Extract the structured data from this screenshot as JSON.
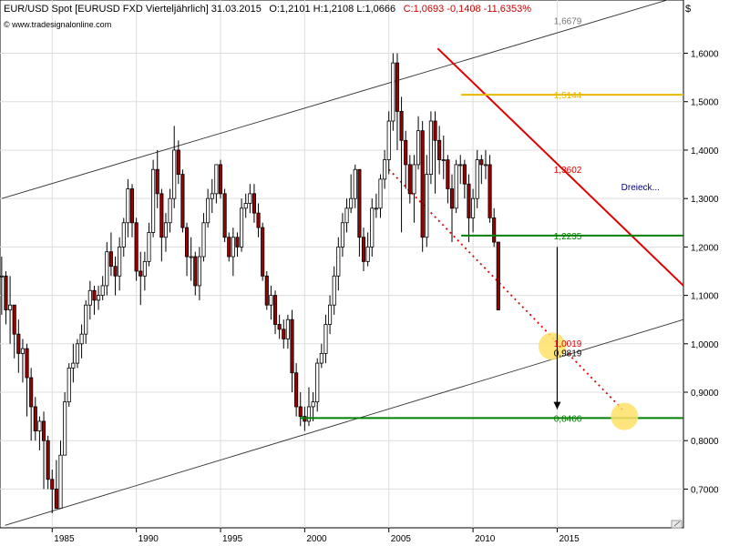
{
  "header": {
    "title": "EUR/USD Spot [EURUSD FXD  Vierteljährlich] 31.03.2015",
    "ohlc": "O:1,2101 H:1,2108 L:1,0666",
    "close_change": "C:1,0693 -0,1408 -11,6353%",
    "source": "© www.tradesignalonline.com",
    "currency": "$"
  },
  "colors": {
    "up": "#ffffff",
    "down": "#990000",
    "wick": "#000000",
    "channel": "#333333",
    "resistance": "#e00000",
    "projection": "#e00000",
    "support": "#008000",
    "level_1514": "#ffcc00",
    "highlight": "#ffe066",
    "arrow": "#000000",
    "annotation": "#000080"
  },
  "chart_data": {
    "type": "candlestick",
    "frequency": "quarterly",
    "ylim": [
      0.62,
      1.71
    ],
    "yticks": [
      0.7,
      0.8,
      0.9,
      1.0,
      1.1,
      1.2,
      1.3,
      1.4,
      1.5,
      1.6
    ],
    "ytick_labels": [
      "0,7000",
      "0,8000",
      "0,9000",
      "1,0000",
      "1,1000",
      "1,2000",
      "1,3000",
      "1,4000",
      "1,5000",
      "1,6000"
    ],
    "xlim": [
      1981.9,
      2022.5
    ],
    "xticks": [
      1985,
      1990,
      1995,
      2000,
      2005,
      2010,
      2015
    ],
    "xtick_labels": [
      "1985",
      "1990",
      "1995",
      "2000",
      "2005",
      "2010",
      "2015"
    ],
    "grid": true,
    "series_start": 1982.0,
    "closes": [
      1.14,
      1.07,
      1.08,
      1.02,
      0.98,
      0.99,
      0.93,
      0.87,
      0.82,
      0.84,
      0.8,
      0.72,
      0.7,
      0.66,
      0.77,
      0.88,
      0.95,
      0.96,
      1.0,
      1.02,
      1.08,
      1.11,
      1.09,
      1.1,
      1.12,
      1.19,
      1.16,
      1.14,
      1.2,
      1.25,
      1.32,
      1.25,
      1.15,
      1.14,
      1.17,
      1.23,
      1.36,
      1.31,
      1.22,
      1.25,
      1.3,
      1.4,
      1.35,
      1.24,
      1.18,
      1.18,
      1.12,
      1.18,
      1.25,
      1.3,
      1.31,
      1.37,
      1.31,
      1.22,
      1.18,
      1.22,
      1.2,
      1.28,
      1.29,
      1.31,
      1.27,
      1.24,
      1.14,
      1.08,
      1.1,
      1.04,
      1.03,
      1.01,
      1.05,
      0.94,
      0.87,
      0.85,
      0.84,
      0.87,
      0.88,
      0.96,
      0.98,
      1.04,
      1.08,
      1.14,
      1.2,
      1.25,
      1.28,
      1.3,
      1.36,
      1.22,
      1.17,
      1.2,
      1.28,
      1.28,
      1.34,
      1.38,
      1.46,
      1.58,
      1.48,
      1.42,
      1.37,
      1.31,
      1.37,
      1.44,
      1.22,
      1.35,
      1.46,
      1.42,
      1.38,
      1.38,
      1.32,
      1.28,
      1.37,
      1.37,
      1.33,
      1.26,
      1.3,
      1.38,
      1.37,
      1.37,
      1.26,
      1.21,
      1.07
    ],
    "highs": [
      1.18,
      1.15,
      1.14,
      1.08,
      1.05,
      1.01,
      1.0,
      0.95,
      0.89,
      0.85,
      0.86,
      0.81,
      0.74,
      0.76,
      0.8,
      0.9,
      0.96,
      1.0,
      1.01,
      1.04,
      1.09,
      1.13,
      1.12,
      1.12,
      1.14,
      1.21,
      1.23,
      1.18,
      1.22,
      1.26,
      1.34,
      1.33,
      1.26,
      1.19,
      1.19,
      1.25,
      1.38,
      1.4,
      1.32,
      1.27,
      1.32,
      1.45,
      1.42,
      1.36,
      1.25,
      1.22,
      1.19,
      1.2,
      1.27,
      1.32,
      1.34,
      1.37,
      1.38,
      1.32,
      1.23,
      1.24,
      1.23,
      1.3,
      1.31,
      1.33,
      1.33,
      1.29,
      1.25,
      1.15,
      1.12,
      1.11,
      1.06,
      1.05,
      1.06,
      1.07,
      0.96,
      0.9,
      0.87,
      0.91,
      0.9,
      0.97,
      1.0,
      1.06,
      1.1,
      1.16,
      1.22,
      1.27,
      1.3,
      1.35,
      1.37,
      1.36,
      1.24,
      1.23,
      1.3,
      1.31,
      1.35,
      1.4,
      1.48,
      1.6,
      1.6,
      1.51,
      1.44,
      1.39,
      1.39,
      1.47,
      1.46,
      1.39,
      1.48,
      1.48,
      1.45,
      1.43,
      1.39,
      1.35,
      1.38,
      1.39,
      1.38,
      1.35,
      1.32,
      1.4,
      1.39,
      1.4,
      1.39,
      1.28,
      1.21
    ],
    "lows": [
      1.06,
      1.04,
      1.0,
      0.97,
      0.94,
      0.92,
      0.85,
      0.8,
      0.8,
      0.78,
      0.7,
      0.7,
      0.65,
      0.66,
      0.69,
      0.77,
      0.87,
      0.92,
      0.95,
      0.97,
      1.0,
      1.05,
      1.06,
      1.07,
      1.09,
      1.1,
      1.14,
      1.1,
      1.11,
      1.18,
      1.22,
      1.22,
      1.13,
      1.08,
      1.11,
      1.16,
      1.22,
      1.28,
      1.17,
      1.19,
      1.23,
      1.28,
      1.33,
      1.23,
      1.14,
      1.13,
      1.1,
      1.09,
      1.17,
      1.24,
      1.27,
      1.29,
      1.3,
      1.21,
      1.17,
      1.14,
      1.18,
      1.19,
      1.26,
      1.27,
      1.25,
      1.22,
      1.13,
      1.07,
      1.05,
      1.02,
      1.01,
      0.99,
      0.99,
      0.9,
      0.85,
      0.83,
      0.82,
      0.83,
      0.84,
      0.86,
      0.95,
      0.96,
      1.02,
      1.06,
      1.11,
      1.18,
      1.23,
      1.27,
      1.28,
      1.18,
      1.15,
      1.16,
      1.18,
      1.26,
      1.26,
      1.32,
      1.35,
      1.44,
      1.4,
      1.23,
      1.32,
      1.29,
      1.25,
      1.36,
      1.19,
      1.2,
      1.33,
      1.31,
      1.35,
      1.34,
      1.29,
      1.21,
      1.27,
      1.33,
      1.3,
      1.21,
      1.23,
      1.28,
      1.33,
      1.34,
      1.25,
      1.2,
      1.07
    ],
    "levels": [
      {
        "value": 1.6679,
        "label": "1,6679",
        "color": "#777777",
        "line": false
      },
      {
        "value": 1.5144,
        "label": "1,5144",
        "color": "#e6b800",
        "line": true,
        "x_from": 2009.3,
        "x_to": 2022.5
      },
      {
        "value": 1.3602,
        "label": "1,3602",
        "color": "#e00000",
        "line": false
      },
      {
        "value": 1.2235,
        "label": "1,2235",
        "color": "#008000",
        "line": true,
        "x_from": 2009.3,
        "x_to": 2022.5
      },
      {
        "value": 1.0019,
        "label": "1,0019",
        "color": "#e00000",
        "line": false
      },
      {
        "value": 0.9819,
        "label": "0,9819",
        "color": "#000000",
        "line": false
      },
      {
        "value": 0.8466,
        "label": "0,8466",
        "color": "#008000",
        "line": true,
        "x_from": 1999.7,
        "x_to": 2022.5
      }
    ],
    "lines": {
      "channel_upper": [
        [
          1982.0,
          1.3
        ],
        [
          2022.5,
          1.72
        ]
      ],
      "channel_lower": [
        [
          1982.2,
          0.625
        ],
        [
          2022.5,
          1.05
        ]
      ],
      "resistance": [
        [
          2007.9,
          1.61
        ],
        [
          2022.5,
          1.12
        ]
      ],
      "projection": [
        [
          2005.0,
          1.36
        ],
        [
          2019.0,
          0.86
        ]
      ],
      "measured_move": [
        [
          2015.0,
          1.2
        ],
        [
          2015.0,
          0.865
        ]
      ]
    },
    "highlights": [
      {
        "x": 2014.7,
        "y": 0.995
      },
      {
        "x": 2019.0,
        "y": 0.85
      }
    ],
    "annotations": [
      {
        "text": "Dreieck...",
        "x": 2018.8,
        "y": 1.325
      }
    ]
  }
}
